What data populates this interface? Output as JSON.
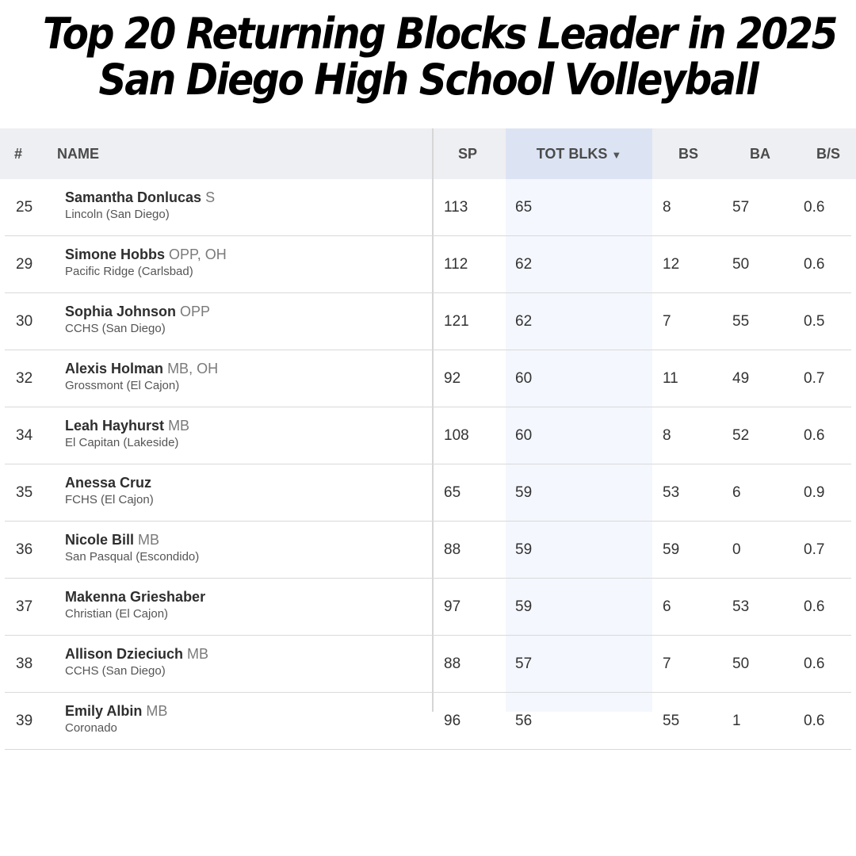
{
  "title": {
    "line1": "Top 20 Returning Blocks Leader in 2025",
    "line2": "San Diego High School Volleyball"
  },
  "table": {
    "headers": {
      "rank": "#",
      "name": "NAME",
      "sp": "SP",
      "tot_blks": "TOT BLKS",
      "sort_arrow": "▼",
      "bs": "BS",
      "ba": "BA",
      "bs_ratio": "B/S"
    },
    "rows": [
      {
        "rank": "25",
        "name": "Samantha Donlucas",
        "position": "S",
        "school": "Lincoln (San Diego)",
        "sp": "113",
        "tot_blks": "65",
        "bs": "8",
        "ba": "57",
        "b_s": "0.6"
      },
      {
        "rank": "29",
        "name": "Simone Hobbs",
        "position": "OPP, OH",
        "school": "Pacific Ridge (Carlsbad)",
        "sp": "112",
        "tot_blks": "62",
        "bs": "12",
        "ba": "50",
        "b_s": "0.6"
      },
      {
        "rank": "30",
        "name": "Sophia Johnson",
        "position": "OPP",
        "school": "CCHS (San Diego)",
        "sp": "121",
        "tot_blks": "62",
        "bs": "7",
        "ba": "55",
        "b_s": "0.5"
      },
      {
        "rank": "32",
        "name": "Alexis Holman",
        "position": "MB, OH",
        "school": "Grossmont (El Cajon)",
        "sp": "92",
        "tot_blks": "60",
        "bs": "11",
        "ba": "49",
        "b_s": "0.7"
      },
      {
        "rank": "34",
        "name": "Leah Hayhurst",
        "position": "MB",
        "school": "El Capitan (Lakeside)",
        "sp": "108",
        "tot_blks": "60",
        "bs": "8",
        "ba": "52",
        "b_s": "0.6"
      },
      {
        "rank": "35",
        "name": "Anessa Cruz",
        "position": "",
        "school": "FCHS (El Cajon)",
        "sp": "65",
        "tot_blks": "59",
        "bs": "53",
        "ba": "6",
        "b_s": "0.9"
      },
      {
        "rank": "36",
        "name": "Nicole Bill",
        "position": "MB",
        "school": "San Pasqual (Escondido)",
        "sp": "88",
        "tot_blks": "59",
        "bs": "59",
        "ba": "0",
        "b_s": "0.7"
      },
      {
        "rank": "37",
        "name": "Makenna Grieshaber",
        "position": "",
        "school": "Christian (El Cajon)",
        "sp": "97",
        "tot_blks": "59",
        "bs": "6",
        "ba": "53",
        "b_s": "0.6"
      },
      {
        "rank": "38",
        "name": "Allison Dzieciuch",
        "position": "MB",
        "school": "CCHS (San Diego)",
        "sp": "88",
        "tot_blks": "57",
        "bs": "7",
        "ba": "50",
        "b_s": "0.6"
      },
      {
        "rank": "39",
        "name": "Emily Albin",
        "position": "MB",
        "school": "Coronado",
        "sp": "96",
        "tot_blks": "56",
        "bs": "55",
        "ba": "1",
        "b_s": "0.6"
      }
    ]
  }
}
